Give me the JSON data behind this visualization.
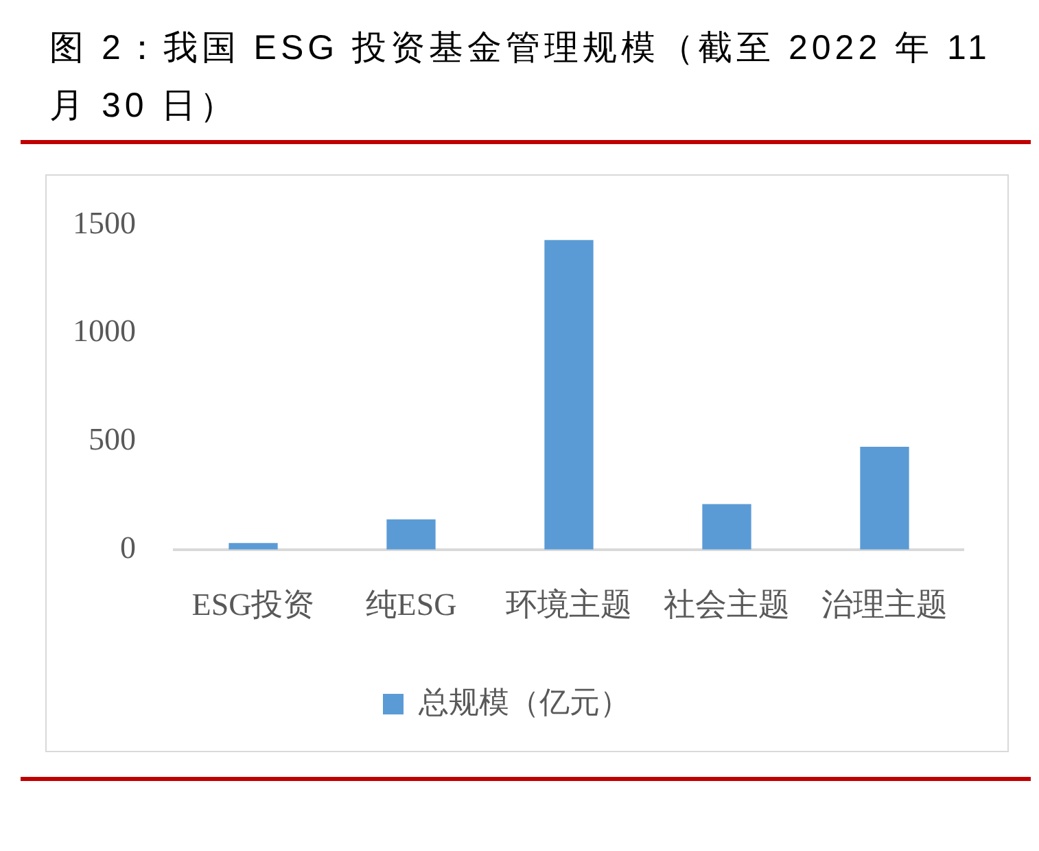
{
  "chart_data": {
    "type": "bar",
    "title": "图 2：我国 ESG 投资基金管理规模（截至 2022 年 11 月 30 日）",
    "categories": [
      "ESG投资",
      "纯ESG",
      "环境主题",
      "社会主题",
      "治理主题"
    ],
    "series": [
      {
        "name": "总规模（亿元）",
        "color": "#5b9bd5",
        "values": [
          30,
          140,
          1430,
          210,
          475
        ]
      }
    ],
    "ylim": [
      0,
      1500
    ],
    "yticks": [
      0,
      500,
      1000,
      1500
    ],
    "grid": false,
    "legend": "bottom"
  }
}
